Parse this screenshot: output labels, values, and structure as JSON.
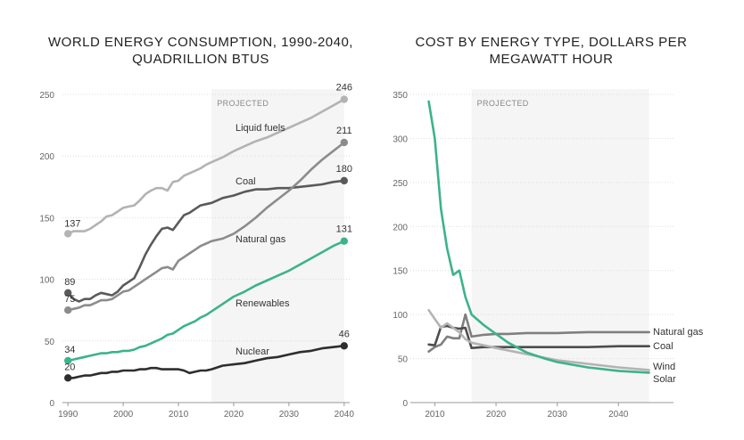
{
  "chart_data": [
    {
      "type": "line",
      "title_lines": [
        "WORLD ENERGY CONSUMPTION, 1990-2040,",
        "QUADRILLION BTUS"
      ],
      "xlabel": "",
      "ylabel": "",
      "xlim": [
        1989,
        2041
      ],
      "ylim": [
        0,
        250
      ],
      "x_ticks": [
        "1990",
        "2000",
        "2010",
        "2020",
        "2030",
        "2040"
      ],
      "y_ticks": [
        "0",
        "50",
        "100",
        "150",
        "200",
        "250"
      ],
      "grid": true,
      "projected_label": "PROJECTED",
      "projected_range": [
        2016,
        2040
      ],
      "series": [
        {
          "name": "Liquid fuels",
          "color": "#b3b3b3",
          "start_label": "137",
          "end_label": "246",
          "x": [
            1990,
            1991,
            1992,
            1993,
            1994,
            1995,
            1996,
            1997,
            1998,
            1999,
            2000,
            2001,
            2002,
            2003,
            2004,
            2005,
            2006,
            2007,
            2008,
            2009,
            2010,
            2011,
            2012,
            2013,
            2014,
            2015,
            2016,
            2018,
            2020,
            2022,
            2024,
            2026,
            2028,
            2030,
            2032,
            2034,
            2036,
            2038,
            2040
          ],
          "values": [
            137,
            139,
            139,
            139,
            141,
            144,
            147,
            151,
            152,
            155,
            158,
            159,
            160,
            164,
            169,
            172,
            174,
            174,
            172,
            179,
            180,
            184,
            186,
            188,
            190,
            193,
            195,
            199,
            204,
            208,
            212,
            215,
            219,
            223,
            227,
            231,
            236,
            241,
            246
          ]
        },
        {
          "name": "Coal",
          "color": "#5a5a5a",
          "start_label": "89",
          "end_label": "180",
          "x": [
            1990,
            1991,
            1992,
            1993,
            1994,
            1995,
            1996,
            1997,
            1998,
            1999,
            2000,
            2001,
            2002,
            2003,
            2004,
            2005,
            2006,
            2007,
            2008,
            2009,
            2010,
            2011,
            2012,
            2013,
            2014,
            2015,
            2016,
            2018,
            2020,
            2022,
            2024,
            2026,
            2028,
            2030,
            2032,
            2034,
            2036,
            2038,
            2040
          ],
          "values": [
            89,
            84,
            82,
            84,
            84,
            87,
            89,
            88,
            87,
            90,
            95,
            98,
            101,
            110,
            120,
            128,
            135,
            141,
            142,
            140,
            146,
            152,
            154,
            157,
            160,
            161,
            162,
            166,
            168,
            171,
            173,
            173,
            174,
            174,
            175,
            176,
            177,
            179,
            180
          ]
        },
        {
          "name": "Natural gas",
          "color": "#8c8c8c",
          "start_label": "75",
          "end_label": "211",
          "x": [
            1990,
            1991,
            1992,
            1993,
            1994,
            1995,
            1996,
            1997,
            1998,
            1999,
            2000,
            2001,
            2002,
            2003,
            2004,
            2005,
            2006,
            2007,
            2008,
            2009,
            2010,
            2011,
            2012,
            2013,
            2014,
            2015,
            2016,
            2018,
            2020,
            2022,
            2024,
            2026,
            2028,
            2030,
            2032,
            2034,
            2036,
            2038,
            2040
          ],
          "values": [
            75,
            76,
            77,
            79,
            79,
            81,
            83,
            83,
            84,
            87,
            90,
            91,
            94,
            97,
            100,
            103,
            106,
            109,
            110,
            108,
            115,
            118,
            121,
            124,
            127,
            129,
            131,
            133,
            137,
            143,
            150,
            158,
            165,
            172,
            180,
            189,
            197,
            204,
            211
          ]
        },
        {
          "name": "Renewables",
          "color": "#3cb38a",
          "start_label": "34",
          "end_label": "131",
          "x": [
            1990,
            1991,
            1992,
            1993,
            1994,
            1995,
            1996,
            1997,
            1998,
            1999,
            2000,
            2001,
            2002,
            2003,
            2004,
            2005,
            2006,
            2007,
            2008,
            2009,
            2010,
            2011,
            2012,
            2013,
            2014,
            2015,
            2016,
            2018,
            2020,
            2022,
            2024,
            2026,
            2028,
            2030,
            2032,
            2034,
            2036,
            2038,
            2040
          ],
          "values": [
            34,
            35,
            36,
            37,
            38,
            39,
            40,
            40,
            41,
            41,
            42,
            42,
            43,
            45,
            46,
            48,
            50,
            52,
            55,
            56,
            59,
            62,
            64,
            66,
            69,
            71,
            74,
            80,
            86,
            90,
            95,
            99,
            103,
            107,
            112,
            117,
            122,
            127,
            131
          ]
        },
        {
          "name": "Nuclear",
          "color": "#2e2e2e",
          "start_label": "20",
          "end_label": "46",
          "x": [
            1990,
            1991,
            1992,
            1993,
            1994,
            1995,
            1996,
            1997,
            1998,
            1999,
            2000,
            2001,
            2002,
            2003,
            2004,
            2005,
            2006,
            2007,
            2008,
            2009,
            2010,
            2011,
            2012,
            2013,
            2014,
            2015,
            2016,
            2018,
            2020,
            2022,
            2024,
            2026,
            2028,
            2030,
            2032,
            2034,
            2036,
            2038,
            2040
          ],
          "values": [
            20,
            20,
            21,
            22,
            22,
            23,
            24,
            24,
            25,
            25,
            26,
            26,
            26,
            27,
            27,
            28,
            28,
            27,
            27,
            27,
            27,
            26,
            24,
            25,
            26,
            26,
            27,
            30,
            31,
            32,
            34,
            36,
            37,
            39,
            41,
            42,
            44,
            45,
            46
          ]
        }
      ]
    },
    {
      "type": "line",
      "title_lines": [
        "COST BY ENERGY TYPE, DOLLARS PER",
        "MEGAWATT HOUR"
      ],
      "xlabel": "",
      "ylabel": "",
      "xlim": [
        2006,
        2049
      ],
      "ylim": [
        0,
        350
      ],
      "x_ticks": [
        "2010",
        "2020",
        "2030",
        "2040"
      ],
      "y_ticks": [
        "0",
        "50",
        "100",
        "150",
        "200",
        "250",
        "300",
        "350"
      ],
      "grid": true,
      "projected_label": "PROJECTED",
      "projected_range": [
        2016,
        2045
      ],
      "series": [
        {
          "name": "Natural gas",
          "color": "#7f7f7f",
          "x": [
            2009,
            2010,
            2011,
            2012,
            2013,
            2014,
            2015,
            2016,
            2018,
            2020,
            2022,
            2025,
            2030,
            2035,
            2040,
            2045
          ],
          "values": [
            58,
            63,
            66,
            75,
            73,
            73,
            100,
            75,
            77,
            78,
            78,
            79,
            79,
            80,
            80,
            80
          ]
        },
        {
          "name": "Coal",
          "color": "#4d4d4d",
          "x": [
            2009,
            2010,
            2011,
            2012,
            2013,
            2014,
            2015,
            2016,
            2018,
            2020,
            2025,
            2030,
            2035,
            2040,
            2045
          ],
          "values": [
            66,
            65,
            86,
            87,
            85,
            84,
            85,
            62,
            63,
            63,
            63,
            63,
            63,
            64,
            64
          ]
        },
        {
          "name": "Wind",
          "color": "#b3b3b3",
          "x": [
            2009,
            2010,
            2011,
            2012,
            2013,
            2014,
            2015,
            2016,
            2018,
            2020,
            2025,
            2030,
            2035,
            2040,
            2045
          ],
          "values": [
            105,
            95,
            85,
            90,
            85,
            80,
            72,
            68,
            65,
            62,
            55,
            48,
            44,
            40,
            37
          ]
        },
        {
          "name": "Solar",
          "color": "#3cb38a",
          "x": [
            2009,
            2010,
            2011,
            2012,
            2013,
            2014,
            2015,
            2016,
            2018,
            2020,
            2022,
            2025,
            2028,
            2030,
            2035,
            2040,
            2045
          ],
          "values": [
            342,
            300,
            220,
            175,
            145,
            150,
            120,
            100,
            88,
            78,
            68,
            57,
            50,
            46,
            40,
            36,
            34
          ]
        }
      ]
    }
  ]
}
